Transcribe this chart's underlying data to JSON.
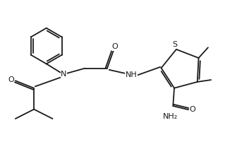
{
  "background": "#ffffff",
  "line_color": "#1a1a1a",
  "line_width": 1.3,
  "font_size": 7.5,
  "fig_width": 3.53,
  "fig_height": 2.18,
  "dpi": 100,
  "xlim": [
    0,
    10
  ],
  "ylim": [
    0,
    5.8
  ]
}
